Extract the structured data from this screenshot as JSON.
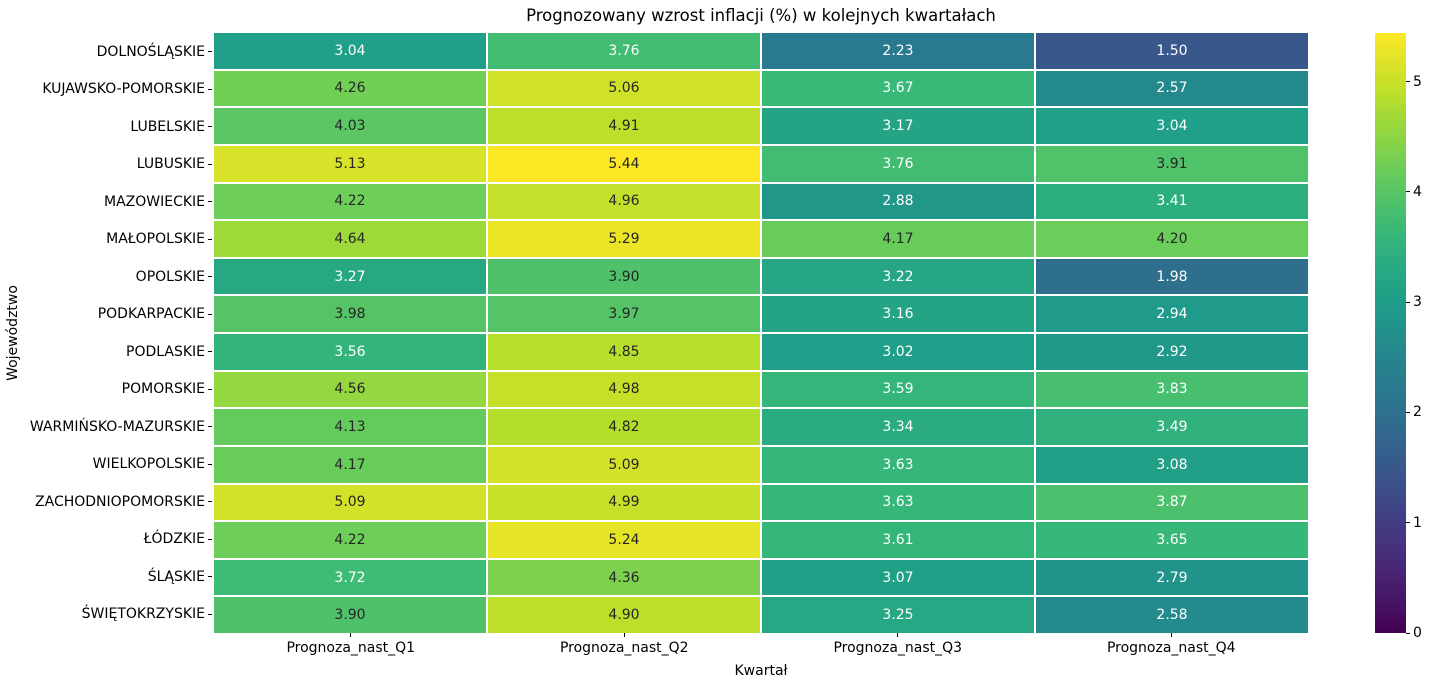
{
  "title": "Prognozowany wzrost inflacji (%) w kolejnych kwartałach",
  "chart_data": {
    "type": "heatmap",
    "title": "Prognozowany wzrost inflacji (%) w kolejnych kwartałach",
    "xlabel": "Kwartał",
    "ylabel": "Województwo",
    "columns": [
      "Prognoza_nast_Q1",
      "Prognoza_nast_Q2",
      "Prognoza_nast_Q3",
      "Prognoza_nast_Q4"
    ],
    "rows": [
      "DOLNOŚLĄSKIE",
      "KUJAWSKO-POMORSKIE",
      "LUBELSKIE",
      "LUBUSKIE",
      "MAZOWIECKIE",
      "MAŁOPOLSKIE",
      "OPOLSKIE",
      "PODKARPACKIE",
      "PODLASKIE",
      "POMORSKIE",
      "WARMIŃSKO-MAZURSKIE",
      "WIELKOPOLSKIE",
      "ZACHODNIOPOMORSKIE",
      "ŁÓDZKIE",
      "ŚLĄSKIE",
      "ŚWIĘTOKRZYSKIE"
    ],
    "values": [
      [
        3.04,
        3.76,
        2.23,
        1.5
      ],
      [
        4.26,
        5.06,
        3.67,
        2.57
      ],
      [
        4.03,
        4.91,
        3.17,
        3.04
      ],
      [
        5.13,
        5.44,
        3.76,
        3.91
      ],
      [
        4.22,
        4.96,
        2.88,
        3.41
      ],
      [
        4.64,
        5.29,
        4.17,
        4.2
      ],
      [
        3.27,
        3.9,
        3.22,
        1.98
      ],
      [
        3.98,
        3.97,
        3.16,
        2.94
      ],
      [
        3.56,
        4.85,
        3.02,
        2.92
      ],
      [
        4.56,
        4.98,
        3.59,
        3.83
      ],
      [
        4.13,
        4.82,
        3.34,
        3.49
      ],
      [
        4.17,
        5.09,
        3.63,
        3.08
      ],
      [
        5.09,
        4.99,
        3.63,
        3.87
      ],
      [
        4.22,
        5.24,
        3.61,
        3.65
      ],
      [
        3.72,
        4.36,
        3.07,
        2.79
      ],
      [
        3.9,
        4.9,
        3.25,
        2.58
      ]
    ],
    "annotations": true,
    "value_format": "2-decimals",
    "colormap": "viridis",
    "vmin": 0,
    "vmax": 5.44,
    "grid": false,
    "colorbar": {
      "position": "right",
      "ticks": [
        0,
        1,
        2,
        3,
        4,
        5
      ]
    }
  },
  "colors": {
    "background": "#ffffff",
    "cell_gap": "#ffffff",
    "annotation_dark": "#262626",
    "annotation_light": "#ffffff",
    "axis_text": "#000000",
    "viridis_min": "#440154",
    "viridis_max": "#fde725"
  }
}
